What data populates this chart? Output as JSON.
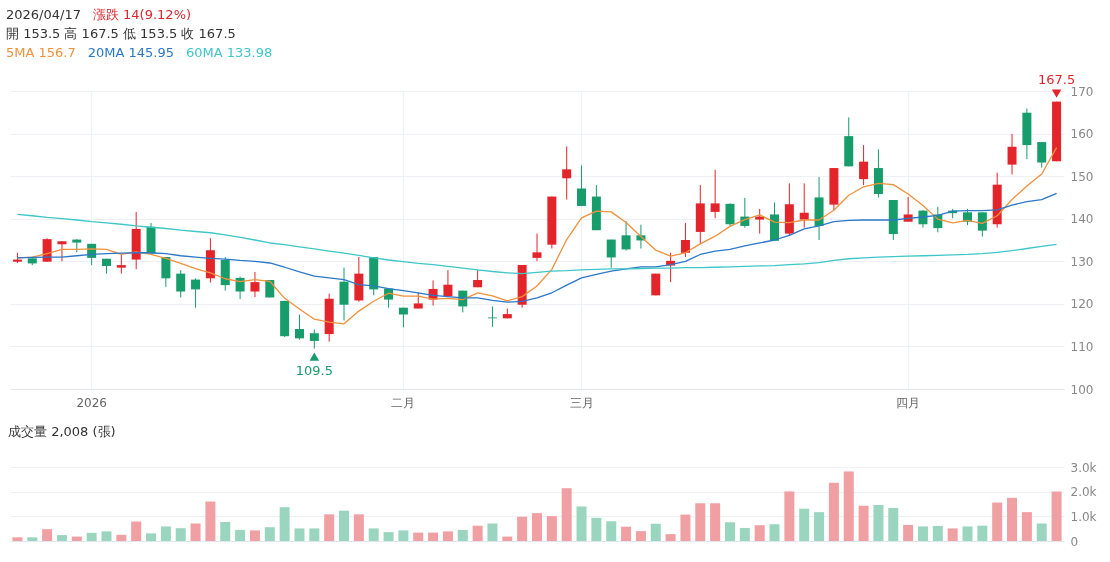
{
  "chart_data": [
    {
      "type": "candlestick",
      "title": "2026/04/17",
      "subtitle": "開 153.5  高 167.5  低 153.5  收 167.5",
      "annotations": [
        "漲跌 14(9.12%)",
        {
          "text": "167.5",
          "y": 167.5
        },
        {
          "text": "109.5",
          "y": 109.5
        }
      ],
      "categories": [
        null,
        null,
        null,
        null,
        null,
        "2026",
        null,
        null,
        null,
        null,
        null,
        null,
        null,
        null,
        null,
        null,
        null,
        null,
        null,
        null,
        null,
        null,
        null,
        null,
        null,
        null,
        "二月",
        null,
        null,
        null,
        null,
        null,
        null,
        null,
        null,
        null,
        null,
        null,
        "三月",
        null,
        null,
        null,
        null,
        null,
        null,
        null,
        null,
        null,
        null,
        null,
        null,
        null,
        null,
        null,
        null,
        null,
        null,
        null,
        null,
        null,
        "四月",
        null,
        null,
        null,
        null,
        null,
        null,
        null,
        null,
        null,
        null
      ],
      "ohlc": [
        [
          129.9,
          132,
          129.6,
          130.4
        ],
        [
          130.7,
          130.7,
          129.1,
          129.5
        ],
        [
          129.9,
          135.4,
          129.9,
          135.2
        ],
        [
          134,
          134.7,
          130,
          134.7
        ],
        [
          135.1,
          135.2,
          132.1,
          134.4
        ],
        [
          134.1,
          134.1,
          129.1,
          130.8
        ],
        [
          130.6,
          130.6,
          127.1,
          128.9
        ],
        [
          128.5,
          131.6,
          127.1,
          129.1
        ],
        [
          130.4,
          141.6,
          128.1,
          137.6
        ],
        [
          138.1,
          139,
          131.8,
          131.8
        ],
        [
          131,
          131,
          124,
          126
        ],
        [
          127.1,
          127.9,
          121.5,
          122.9
        ],
        [
          125.7,
          126,
          119.1,
          123.4
        ],
        [
          126,
          135.4,
          125,
          132.6
        ],
        [
          130.3,
          131,
          123.1,
          124.4
        ],
        [
          126.1,
          126.4,
          121.1,
          122.9
        ],
        [
          122.9,
          127.5,
          121.6,
          125.1
        ],
        [
          125.6,
          125.6,
          121.5,
          121.5
        ],
        [
          120.7,
          120.7,
          112.2,
          112.4
        ],
        [
          114.1,
          117.5,
          111.6,
          111.9
        ],
        [
          113.1,
          114,
          109.5,
          111.3
        ],
        [
          112.9,
          122.4,
          111.1,
          121.2
        ],
        [
          125.2,
          128.5,
          116.1,
          119.8
        ],
        [
          120.8,
          131,
          120.5,
          127.1
        ],
        [
          131,
          131,
          122,
          123.4
        ],
        [
          123.6,
          123.6,
          119.1,
          121
        ],
        [
          119.1,
          119.1,
          114.5,
          117.5
        ],
        [
          118.9,
          122.7,
          118.9,
          120.1
        ],
        [
          121,
          125.5,
          119.6,
          123.5
        ],
        [
          121.8,
          127.9,
          121.8,
          124.5
        ],
        [
          123.1,
          123.1,
          118,
          119.4
        ],
        [
          123.9,
          127.9,
          123.9,
          125.6
        ],
        [
          116.8,
          119.4,
          114.6,
          116.6
        ],
        [
          116.6,
          118.9,
          116.6,
          117.6
        ],
        [
          119.8,
          129.1,
          119.1,
          129.1
        ],
        [
          130.8,
          136.5,
          130,
          132.1
        ],
        [
          133.9,
          145.2,
          133,
          145.2
        ],
        [
          149.5,
          157,
          144.5,
          151.6
        ],
        [
          147.1,
          152.5,
          143,
          143
        ],
        [
          145.2,
          147.9,
          137.3,
          137.3
        ],
        [
          135.1,
          135.1,
          128.5,
          130.9
        ],
        [
          136.1,
          139.4,
          132.5,
          132.8
        ],
        [
          136.1,
          138.6,
          133,
          134.9
        ],
        [
          122,
          127.1,
          122,
          127.1
        ],
        [
          129,
          132,
          125.1,
          130.1
        ],
        [
          132,
          139,
          131,
          135
        ],
        [
          136.9,
          147.9,
          134.2,
          143.6
        ],
        [
          141.6,
          151.5,
          140.1,
          143.6
        ],
        [
          143.5,
          143.6,
          138.3,
          138.7
        ],
        [
          140.5,
          144.9,
          137.9,
          138.3
        ],
        [
          139.8,
          142.3,
          136.5,
          140.5
        ],
        [
          141,
          143.8,
          134.8,
          134.8
        ],
        [
          136.5,
          148.3,
          136,
          143.4
        ],
        [
          139.8,
          148.3,
          137.9,
          141.4
        ],
        [
          145,
          149.8,
          135,
          138.3
        ],
        [
          143.3,
          151.9,
          142,
          151.9
        ],
        [
          159.4,
          163.8,
          152.3,
          152.3
        ],
        [
          149.3,
          157.3,
          147.9,
          153.4
        ],
        [
          151.9,
          156.3,
          145,
          145.8
        ],
        [
          144.4,
          144.4,
          135,
          136.4
        ],
        [
          139.3,
          145.1,
          139.3,
          141
        ],
        [
          141.9,
          142,
          137.9,
          138.7
        ],
        [
          141,
          142.8,
          136.8,
          137.8
        ],
        [
          141.9,
          142.3,
          140.1,
          141.3
        ],
        [
          141.5,
          142.3,
          138.5,
          139.3
        ],
        [
          141.5,
          141.5,
          135.8,
          137.2
        ],
        [
          138.7,
          150.8,
          137.9,
          148
        ],
        [
          152.7,
          159.9,
          150.4,
          156.9
        ],
        [
          164.9,
          165.9,
          154,
          157.3
        ],
        [
          158,
          158,
          152,
          153.2
        ],
        [
          153.5,
          167.5,
          153.5,
          167.5
        ]
      ],
      "colors": [
        "#e3242b",
        "#179c6c",
        "#e3242b",
        "#e3242b",
        "#179c6c",
        "#179c6c",
        "#179c6c",
        "#e3242b",
        "#e3242b",
        "#179c6c",
        "#179c6c",
        "#179c6c",
        "#179c6c",
        "#e3242b",
        "#179c6c",
        "#179c6c",
        "#e3242b",
        "#179c6c",
        "#179c6c",
        "#179c6c",
        "#179c6c",
        "#e3242b",
        "#179c6c",
        "#e3242b",
        "#179c6c",
        "#179c6c",
        "#179c6c",
        "#e3242b",
        "#e3242b",
        "#e3242b",
        "#179c6c",
        "#e3242b",
        "#179c6c",
        "#e3242b",
        "#e3242b",
        "#e3242b",
        "#e3242b",
        "#e3242b",
        "#179c6c",
        "#179c6c",
        "#179c6c",
        "#179c6c",
        "#179c6c",
        "#e3242b",
        "#e3242b",
        "#e3242b",
        "#e3242b",
        "#e3242b",
        "#179c6c",
        "#179c6c",
        "#e3242b",
        "#179c6c",
        "#e3242b",
        "#e3242b",
        "#179c6c",
        "#e3242b",
        "#179c6c",
        "#e3242b",
        "#179c6c",
        "#179c6c",
        "#e3242b",
        "#179c6c",
        "#179c6c",
        "#179c6c",
        "#179c6c",
        "#179c6c",
        "#e3242b",
        "#e3242b",
        "#179c6c",
        "#179c6c",
        "#e3242b"
      ],
      "series": [
        {
          "name": "5MA 156.7",
          "type": "line",
          "color": "#f0913c",
          "values": [
            130.8,
            131.0,
            131.8,
            132.8,
            132.8,
            132.9,
            132.8,
            131.6,
            132.2,
            131.6,
            130.7,
            129.5,
            128.3,
            127.3,
            125.9,
            125.2,
            125.7,
            125.3,
            121.3,
            118.8,
            116.4,
            115.7,
            115.3,
            118.3,
            120.6,
            122.5,
            121.8,
            121.8,
            121.1,
            121.3,
            121.0,
            122.6,
            121.9,
            120.7,
            121.7,
            124.2,
            128.1,
            135.1,
            140.2,
            141.8,
            141.6,
            139.1,
            135.8,
            132.6,
            131.2,
            132.0,
            134.1,
            135.9,
            138.2,
            139.8,
            140.9,
            139.2,
            139.1,
            139.7,
            139.7,
            142.0,
            145.5,
            147.5,
            148.3,
            148.0,
            145.8,
            143.1,
            139.9,
            139.0,
            139.6,
            138.9,
            140.7,
            144.5,
            147.7,
            150.5,
            156.7
          ]
        },
        {
          "name": "20MA 145.95",
          "type": "line",
          "color": "#2a78c8",
          "values": [
            130.8,
            130.9,
            131.0,
            131.0,
            131.3,
            131.6,
            131.8,
            131.9,
            132.0,
            132.0,
            131.8,
            131.3,
            131.0,
            130.7,
            130.5,
            130.2,
            130.0,
            129.6,
            128.6,
            127.5,
            126.5,
            126.1,
            125.7,
            124.5,
            124.2,
            123.6,
            123.1,
            122.6,
            122.0,
            121.7,
            121.4,
            121.4,
            120.8,
            120.4,
            120.6,
            121.4,
            122.6,
            124.4,
            126.1,
            126.9,
            127.7,
            128.2,
            128.7,
            128.7,
            129.2,
            130.0,
            131.6,
            132.4,
            132.8,
            133.6,
            134.3,
            135.0,
            136.1,
            137.6,
            138.3,
            139.3,
            139.6,
            139.7,
            139.7,
            139.7,
            140.1,
            140.4,
            140.8,
            141.8,
            141.9,
            141.9,
            142.1,
            143.2,
            144.0,
            144.5,
            145.95
          ]
        },
        {
          "name": "60MA 133.98",
          "type": "line",
          "color": "#3ec6c9",
          "values": [
            141.0,
            140.7,
            140.3,
            140.0,
            139.7,
            139.3,
            139.0,
            138.7,
            138.3,
            138.0,
            137.7,
            137.3,
            137.0,
            136.7,
            136.2,
            135.6,
            135.0,
            134.3,
            133.9,
            133.4,
            132.9,
            132.4,
            131.9,
            131.4,
            130.8,
            130.3,
            129.9,
            129.5,
            129.2,
            128.8,
            128.4,
            128.0,
            127.6,
            127.3,
            127.1,
            127.4,
            127.7,
            127.8,
            128.0,
            128.1,
            128.2,
            128.2,
            128.3,
            128.4,
            128.4,
            128.5,
            128.5,
            128.6,
            128.7,
            128.8,
            128.9,
            129.0,
            129.2,
            129.4,
            129.7,
            130.2,
            130.6,
            130.8,
            131.0,
            131.1,
            131.2,
            131.3,
            131.4,
            131.5,
            131.6,
            131.8,
            132.1,
            132.5,
            133.0,
            133.5,
            133.98
          ]
        }
      ],
      "ylim": [
        100,
        170
      ],
      "yticks": [
        100,
        110,
        120,
        130,
        140,
        150,
        160,
        170
      ],
      "grid": true,
      "legend": "top left"
    },
    {
      "type": "bar",
      "title": "成交量  2,008 (張)",
      "categories": [
        null,
        null,
        null,
        null,
        null,
        null,
        null,
        null,
        null,
        null,
        null,
        null,
        null,
        null,
        null,
        null,
        null,
        null,
        null,
        null,
        null,
        null,
        null,
        null,
        null,
        null,
        null,
        null,
        null,
        null,
        null,
        null,
        null,
        null,
        null,
        null,
        null,
        null,
        null,
        null,
        null,
        null,
        null,
        null,
        null,
        null,
        null,
        null,
        null,
        null,
        null,
        null,
        null,
        null,
        null,
        null,
        null,
        null,
        null,
        null,
        null,
        null,
        null,
        null,
        null,
        null,
        null,
        null,
        null,
        null,
        null
      ],
      "values": [
        150,
        150,
        480,
        240,
        180,
        330,
        390,
        250,
        790,
        310,
        590,
        520,
        710,
        1600,
        770,
        450,
        430,
        560,
        1370,
        510,
        510,
        1080,
        1230,
        1080,
        510,
        360,
        430,
        340,
        340,
        390,
        450,
        620,
        710,
        180,
        980,
        1130,
        1010,
        2140,
        1400,
        940,
        800,
        580,
        400,
        700,
        280,
        1070,
        1530,
        1530,
        760,
        530,
        640,
        680,
        2010,
        1310,
        1170,
        2360,
        2820,
        1430,
        1460,
        1340,
        650,
        590,
        610,
        510,
        590,
        620,
        1560,
        1750,
        1170,
        710,
        2008
      ],
      "colors": [
        "#f09fa3",
        "#9ad6bf",
        "#f09fa3",
        "#9ad6bf",
        "#f09fa3",
        "#9ad6bf",
        "#9ad6bf",
        "#f09fa3",
        "#f09fa3",
        "#9ad6bf",
        "#9ad6bf",
        "#9ad6bf",
        "#f09fa3",
        "#f09fa3",
        "#9ad6bf",
        "#9ad6bf",
        "#f09fa3",
        "#9ad6bf",
        "#9ad6bf",
        "#9ad6bf",
        "#9ad6bf",
        "#f09fa3",
        "#9ad6bf",
        "#f09fa3",
        "#9ad6bf",
        "#9ad6bf",
        "#9ad6bf",
        "#f09fa3",
        "#f09fa3",
        "#f09fa3",
        "#9ad6bf",
        "#f09fa3",
        "#9ad6bf",
        "#f09fa3",
        "#f09fa3",
        "#f09fa3",
        "#f09fa3",
        "#f09fa3",
        "#9ad6bf",
        "#9ad6bf",
        "#9ad6bf",
        "#f09fa3",
        "#f09fa3",
        "#9ad6bf",
        "#f09fa3",
        "#f09fa3",
        "#f09fa3",
        "#f09fa3",
        "#9ad6bf",
        "#9ad6bf",
        "#f09fa3",
        "#9ad6bf",
        "#f09fa3",
        "#9ad6bf",
        "#9ad6bf",
        "#f09fa3",
        "#f09fa3",
        "#f09fa3",
        "#9ad6bf",
        "#9ad6bf",
        "#f09fa3",
        "#9ad6bf",
        "#9ad6bf",
        "#f09fa3",
        "#9ad6bf",
        "#9ad6bf",
        "#f09fa3",
        "#f09fa3",
        "#f09fa3",
        "#9ad6bf",
        "#f09fa3"
      ],
      "ylim": [
        0,
        3000
      ],
      "yticks": [
        0,
        {
          "value": 1000,
          "label": "1.0k"
        },
        {
          "value": 2000,
          "label": "2.0k"
        },
        {
          "value": 3000,
          "label": "3.0k"
        }
      ],
      "grid": "y"
    }
  ]
}
